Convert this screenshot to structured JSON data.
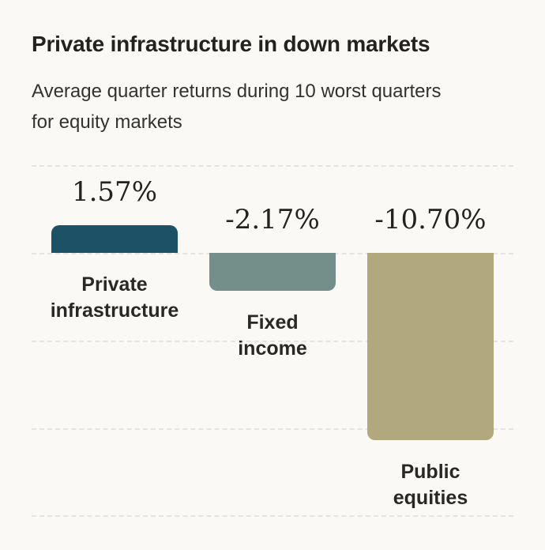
{
  "header": {
    "title": "Private infrastructure in down markets",
    "subtitle": "Average quarter returns during 10 worst quarters for equity markets"
  },
  "chart_data": {
    "type": "bar",
    "title": "Private infrastructure in down markets",
    "subtitle": "Average quarter returns during 10 worst quarters for equity markets",
    "categories": [
      "Private infrastructure",
      "Fixed income",
      "Public equities"
    ],
    "values": [
      1.57,
      -2.17,
      -10.7
    ],
    "value_labels": [
      "1.57%",
      "-2.17%",
      "-10.70%"
    ],
    "category_lines": [
      [
        "Private",
        "infrastructure"
      ],
      [
        "Fixed",
        "income"
      ],
      [
        "Public",
        "equities"
      ]
    ],
    "unit": "%",
    "xlabel": "",
    "ylabel": "",
    "ylim": [
      -15,
      5
    ],
    "gridlines": [
      5,
      0,
      -5,
      -10,
      -15
    ],
    "grid_on": true,
    "legend_position": "none",
    "bar_colors": [
      "#1d5166",
      "#748f8a",
      "#b2a87d"
    ]
  },
  "style": {
    "background": "#faf9f6",
    "text_primary": "#232220",
    "text_secondary": "#34322f",
    "gridline_color": "#e6e4e0"
  }
}
